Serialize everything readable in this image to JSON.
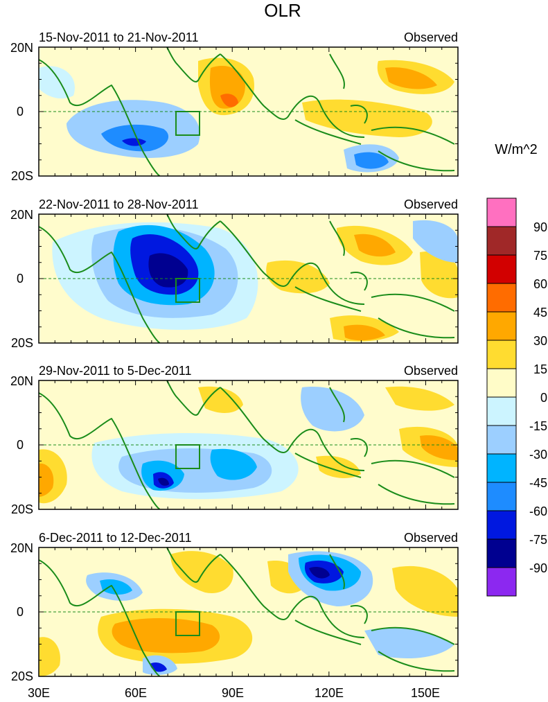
{
  "title": "OLR",
  "panels": [
    {
      "date_range": "15-Nov-2011 to 21-Nov-2011",
      "label": "Observed"
    },
    {
      "date_range": "22-Nov-2011 to 28-Nov-2011",
      "label": "Observed"
    },
    {
      "date_range": "29-Nov-2011 to 5-Dec-2011",
      "label": "Observed"
    },
    {
      "date_range": "6-Dec-2011 to 12-Dec-2011",
      "label": "Observed"
    }
  ],
  "lat_labels": [
    "20N",
    "0",
    "20S"
  ],
  "lon_labels": [
    "30E",
    "60E",
    "90E",
    "120E",
    "150E"
  ],
  "colorbar": {
    "units": "W/m^2",
    "tick_labels": [
      "90",
      "75",
      "60",
      "45",
      "30",
      "15",
      "0",
      "-15",
      "-30",
      "-45",
      "-60",
      "-75",
      "-90"
    ],
    "colors": [
      "#ff70c0",
      "#a02828",
      "#d20000",
      "#ff6c00",
      "#ffa800",
      "#ffdc30",
      "#fffcc8",
      "#ccf4ff",
      "#9ccfff",
      "#00b4ff",
      "#1e8cff",
      "#0018e0",
      "#000090",
      "#8c28f0"
    ]
  },
  "map_colors": {
    "ocean": "#fffccc",
    "coast": "#1a8c1a"
  }
}
